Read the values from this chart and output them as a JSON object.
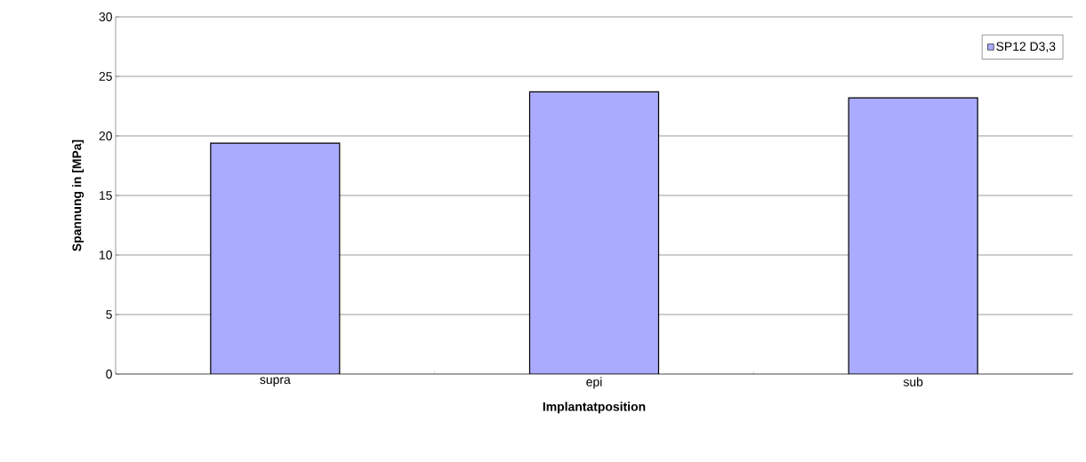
{
  "chart_data": {
    "type": "bar",
    "xlabel": "Implantatposition",
    "ylabel": "Spannung in [MPa]",
    "categories": [
      "supra",
      "epi",
      "sub"
    ],
    "series": [
      {
        "name": "SP12 D3,3",
        "color": "#aaaaff",
        "values": [
          19.4,
          23.7,
          23.2
        ]
      }
    ],
    "ylim": [
      0,
      30
    ],
    "yticks": [
      0,
      5,
      10,
      15,
      20,
      25,
      30
    ],
    "grid": "y",
    "legend": "top right"
  }
}
